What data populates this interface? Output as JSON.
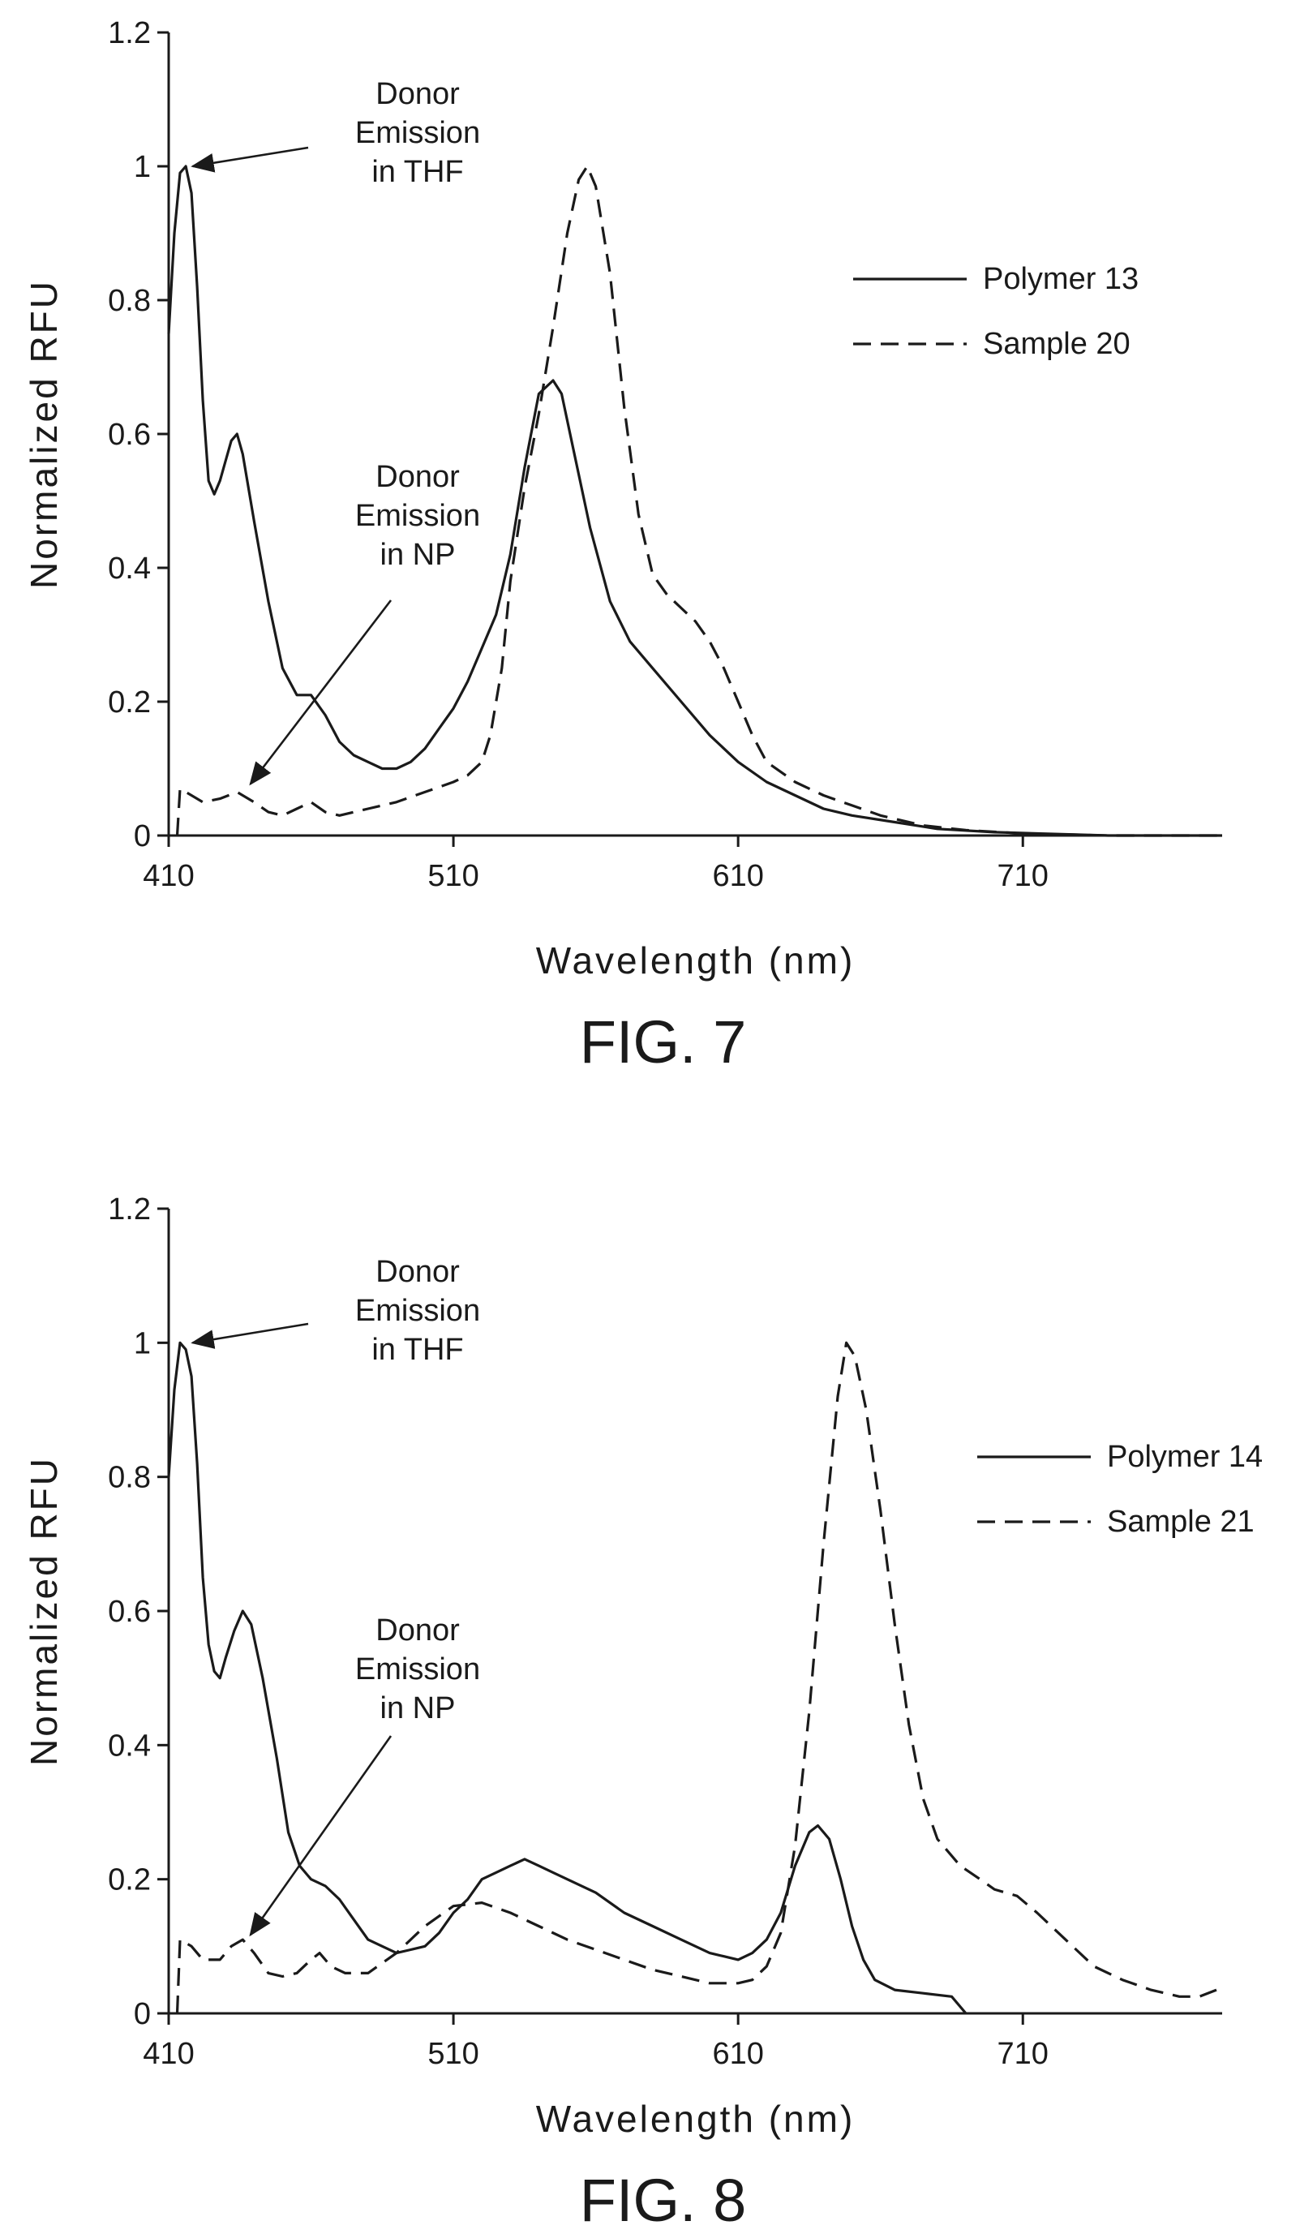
{
  "chart_data": [
    {
      "type": "line",
      "caption": "FIG. 7",
      "xlabel": "Wavelength (nm)",
      "ylabel": "Normalized RFU",
      "xlim": [
        410,
        780
      ],
      "ylim": [
        0,
        1.2
      ],
      "x_ticks": [
        410,
        510,
        610,
        710
      ],
      "y_ticks": [
        0,
        0.2,
        0.4,
        0.6,
        0.8,
        1,
        1.2
      ],
      "legend_position": "top-right",
      "annotations": [
        {
          "text": [
            "Donor",
            "Emission",
            "in THF"
          ],
          "target": [
            415,
            1.0
          ]
        },
        {
          "text": [
            "Donor",
            "Emission",
            "in NP"
          ],
          "target": [
            437,
            0.06
          ]
        }
      ],
      "series": [
        {
          "name": "Polymer 13",
          "style": "solid",
          "points": [
            [
              410,
              0.75
            ],
            [
              412,
              0.9
            ],
            [
              414,
              0.99
            ],
            [
              416,
              1.0
            ],
            [
              418,
              0.96
            ],
            [
              420,
              0.82
            ],
            [
              422,
              0.65
            ],
            [
              424,
              0.53
            ],
            [
              426,
              0.51
            ],
            [
              428,
              0.53
            ],
            [
              430,
              0.56
            ],
            [
              432,
              0.59
            ],
            [
              434,
              0.6
            ],
            [
              436,
              0.57
            ],
            [
              440,
              0.47
            ],
            [
              445,
              0.35
            ],
            [
              450,
              0.25
            ],
            [
              455,
              0.21
            ],
            [
              460,
              0.21
            ],
            [
              465,
              0.18
            ],
            [
              470,
              0.14
            ],
            [
              475,
              0.12
            ],
            [
              480,
              0.11
            ],
            [
              485,
              0.1
            ],
            [
              490,
              0.1
            ],
            [
              495,
              0.11
            ],
            [
              500,
              0.13
            ],
            [
              505,
              0.16
            ],
            [
              510,
              0.19
            ],
            [
              515,
              0.23
            ],
            [
              520,
              0.28
            ],
            [
              525,
              0.33
            ],
            [
              530,
              0.42
            ],
            [
              535,
              0.55
            ],
            [
              540,
              0.66
            ],
            [
              545,
              0.68
            ],
            [
              548,
              0.66
            ],
            [
              552,
              0.58
            ],
            [
              558,
              0.46
            ],
            [
              565,
              0.35
            ],
            [
              572,
              0.29
            ],
            [
              580,
              0.25
            ],
            [
              590,
              0.2
            ],
            [
              600,
              0.15
            ],
            [
              610,
              0.11
            ],
            [
              620,
              0.08
            ],
            [
              630,
              0.06
            ],
            [
              640,
              0.04
            ],
            [
              650,
              0.03
            ],
            [
              665,
              0.02
            ],
            [
              680,
              0.01
            ],
            [
              700,
              0.005
            ],
            [
              740,
              0.0
            ],
            [
              780,
              0.0
            ]
          ]
        },
        {
          "name": "Sample 20",
          "style": "dashed",
          "points": [
            [
              413,
              0.0
            ],
            [
              414,
              0.07
            ],
            [
              418,
              0.06
            ],
            [
              422,
              0.05
            ],
            [
              428,
              0.055
            ],
            [
              434,
              0.065
            ],
            [
              440,
              0.05
            ],
            [
              445,
              0.035
            ],
            [
              450,
              0.03
            ],
            [
              455,
              0.04
            ],
            [
              460,
              0.05
            ],
            [
              465,
              0.035
            ],
            [
              470,
              0.03
            ],
            [
              480,
              0.04
            ],
            [
              490,
              0.05
            ],
            [
              500,
              0.065
            ],
            [
              510,
              0.08
            ],
            [
              515,
              0.09
            ],
            [
              520,
              0.11
            ],
            [
              523,
              0.15
            ],
            [
              527,
              0.25
            ],
            [
              530,
              0.38
            ],
            [
              535,
              0.52
            ],
            [
              540,
              0.63
            ],
            [
              545,
              0.76
            ],
            [
              550,
              0.9
            ],
            [
              554,
              0.98
            ],
            [
              557,
              1.0
            ],
            [
              560,
              0.97
            ],
            [
              565,
              0.84
            ],
            [
              570,
              0.64
            ],
            [
              575,
              0.48
            ],
            [
              580,
              0.39
            ],
            [
              585,
              0.36
            ],
            [
              590,
              0.34
            ],
            [
              595,
              0.32
            ],
            [
              600,
              0.29
            ],
            [
              605,
              0.25
            ],
            [
              610,
              0.2
            ],
            [
              615,
              0.15
            ],
            [
              620,
              0.11
            ],
            [
              630,
              0.08
            ],
            [
              640,
              0.06
            ],
            [
              650,
              0.045
            ],
            [
              660,
              0.03
            ],
            [
              675,
              0.015
            ],
            [
              690,
              0.008
            ],
            [
              710,
              0.003
            ],
            [
              740,
              0.0
            ],
            [
              780,
              0.0
            ]
          ]
        }
      ]
    },
    {
      "type": "line",
      "caption": "FIG. 8",
      "xlabel": "Wavelength (nm)",
      "ylabel": "Normalized RFU",
      "xlim": [
        410,
        780
      ],
      "ylim": [
        0,
        1.2
      ],
      "x_ticks": [
        410,
        510,
        610,
        710
      ],
      "y_ticks": [
        0,
        0.2,
        0.4,
        0.6,
        0.8,
        1,
        1.2
      ],
      "legend_position": "top-right",
      "annotations": [
        {
          "text": [
            "Donor",
            "Emission",
            "in THF"
          ],
          "target": [
            415,
            1.0
          ]
        },
        {
          "text": [
            "Donor",
            "Emission",
            "in NP"
          ],
          "target": [
            437,
            0.1
          ]
        }
      ],
      "series": [
        {
          "name": "Polymer 14",
          "style": "solid",
          "points": [
            [
              410,
              0.8
            ],
            [
              412,
              0.93
            ],
            [
              414,
              1.0
            ],
            [
              416,
              0.99
            ],
            [
              418,
              0.95
            ],
            [
              420,
              0.82
            ],
            [
              422,
              0.65
            ],
            [
              424,
              0.55
            ],
            [
              426,
              0.51
            ],
            [
              428,
              0.5
            ],
            [
              430,
              0.53
            ],
            [
              433,
              0.57
            ],
            [
              436,
              0.6
            ],
            [
              439,
              0.58
            ],
            [
              443,
              0.5
            ],
            [
              448,
              0.38
            ],
            [
              452,
              0.27
            ],
            [
              456,
              0.22
            ],
            [
              460,
              0.2
            ],
            [
              465,
              0.19
            ],
            [
              470,
              0.17
            ],
            [
              475,
              0.14
            ],
            [
              480,
              0.11
            ],
            [
              485,
              0.1
            ],
            [
              490,
              0.09
            ],
            [
              495,
              0.095
            ],
            [
              500,
              0.1
            ],
            [
              505,
              0.12
            ],
            [
              510,
              0.15
            ],
            [
              515,
              0.17
            ],
            [
              520,
              0.2
            ],
            [
              525,
              0.21
            ],
            [
              530,
              0.22
            ],
            [
              535,
              0.23
            ],
            [
              540,
              0.22
            ],
            [
              545,
              0.21
            ],
            [
              550,
              0.2
            ],
            [
              560,
              0.18
            ],
            [
              570,
              0.15
            ],
            [
              580,
              0.13
            ],
            [
              590,
              0.11
            ],
            [
              600,
              0.09
            ],
            [
              605,
              0.085
            ],
            [
              610,
              0.08
            ],
            [
              615,
              0.09
            ],
            [
              620,
              0.11
            ],
            [
              625,
              0.15
            ],
            [
              630,
              0.22
            ],
            [
              635,
              0.27
            ],
            [
              638,
              0.28
            ],
            [
              642,
              0.26
            ],
            [
              646,
              0.2
            ],
            [
              650,
              0.13
            ],
            [
              654,
              0.08
            ],
            [
              658,
              0.05
            ],
            [
              665,
              0.035
            ],
            [
              675,
              0.03
            ],
            [
              685,
              0.025
            ],
            [
              690,
              0.0
            ]
          ]
        },
        {
          "name": "Sample 21",
          "style": "dashed",
          "points": [
            [
              413,
              0.0
            ],
            [
              414,
              0.11
            ],
            [
              418,
              0.1
            ],
            [
              422,
              0.08
            ],
            [
              428,
              0.08
            ],
            [
              432,
              0.1
            ],
            [
              436,
              0.11
            ],
            [
              440,
              0.09
            ],
            [
              445,
              0.06
            ],
            [
              450,
              0.055
            ],
            [
              455,
              0.06
            ],
            [
              460,
              0.08
            ],
            [
              463,
              0.09
            ],
            [
              467,
              0.07
            ],
            [
              472,
              0.06
            ],
            [
              480,
              0.06
            ],
            [
              490,
              0.09
            ],
            [
              500,
              0.13
            ],
            [
              510,
              0.16
            ],
            [
              520,
              0.165
            ],
            [
              530,
              0.15
            ],
            [
              540,
              0.13
            ],
            [
              550,
              0.11
            ],
            [
              560,
              0.095
            ],
            [
              570,
              0.08
            ],
            [
              580,
              0.065
            ],
            [
              590,
              0.055
            ],
            [
              600,
              0.045
            ],
            [
              610,
              0.045
            ],
            [
              615,
              0.05
            ],
            [
              620,
              0.07
            ],
            [
              625,
              0.12
            ],
            [
              630,
              0.25
            ],
            [
              635,
              0.45
            ],
            [
              640,
              0.7
            ],
            [
              645,
              0.92
            ],
            [
              648,
              1.0
            ],
            [
              651,
              0.98
            ],
            [
              655,
              0.9
            ],
            [
              660,
              0.75
            ],
            [
              665,
              0.58
            ],
            [
              670,
              0.43
            ],
            [
              675,
              0.32
            ],
            [
              680,
              0.26
            ],
            [
              688,
              0.22
            ],
            [
              695,
              0.2
            ],
            [
              700,
              0.185
            ],
            [
              708,
              0.175
            ],
            [
              715,
              0.15
            ],
            [
              725,
              0.11
            ],
            [
              735,
              0.07
            ],
            [
              745,
              0.05
            ],
            [
              755,
              0.035
            ],
            [
              765,
              0.025
            ],
            [
              772,
              0.025
            ],
            [
              778,
              0.035
            ]
          ]
        }
      ]
    }
  ]
}
